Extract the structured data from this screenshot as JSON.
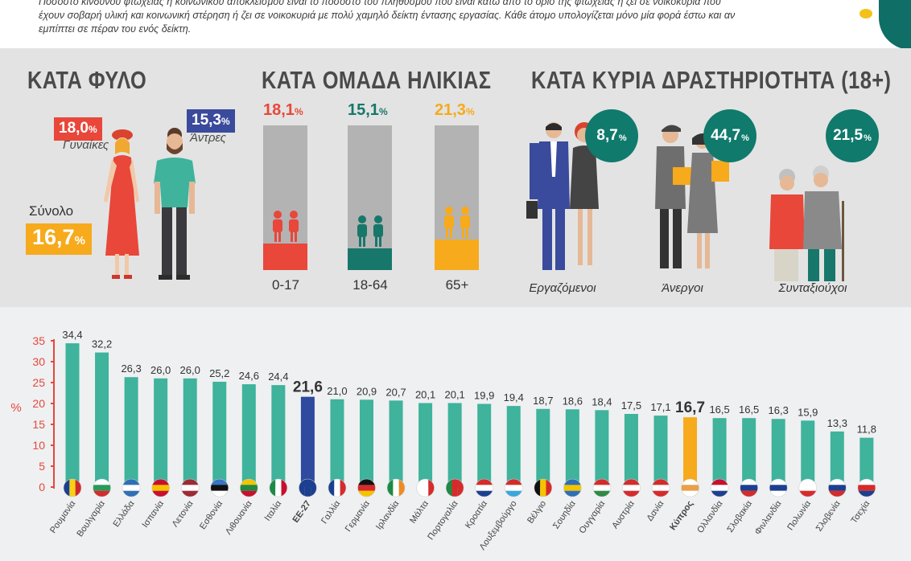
{
  "intro_text": "Ποσοστό κινδύνου φτώχειας ή κοινωνικού αποκλεισμού είναι το ποσοστό του πληθυσμού που είναι κάτω από το όριο της φτώχειας ή ζει σε νοικοκυριά που έχουν σοβαρή υλική και κοινωνική στέρηση ή ζει σε νοικοκυριά με πολύ χαμηλό δείκτη έντασης εργασίας. Κάθε άτομο υπολογίζεται μόνο μία φορά έστω και αν εμπίπτει σε πέραν του ενός δείκτη.",
  "gender": {
    "title": "ΚΑΤΑ ΦΥΛΟ",
    "women_value": "18,0",
    "women_label": "Γυναίκες",
    "men_value": "15,3",
    "men_label": "Άντρες",
    "total_label": "Σύνολο",
    "total_value": "16,7",
    "pct": "%"
  },
  "age": {
    "title": "ΚΑΤΑ ΟΜΑΔΑ ΗΛΙΚΙΑΣ",
    "groups": [
      {
        "value": "18,1",
        "label": "0-17",
        "fraction": 0.181,
        "color": "#e8473a"
      },
      {
        "value": "15,1",
        "label": "18-64",
        "fraction": 0.151,
        "color": "#17776b"
      },
      {
        "value": "21,3",
        "label": "65+",
        "fraction": 0.213,
        "color": "#f6aa1c"
      }
    ],
    "pct": "%"
  },
  "activity": {
    "title": "ΚΑΤΑ ΚΥΡΙΑ ΔΡΑΣΤΗΡΙΟΤΗΤΑ (18+)",
    "groups": [
      {
        "value": "8,7",
        "label": "Εργαζόμενοι"
      },
      {
        "value": "44,7",
        "label": "Άνεργοι"
      },
      {
        "value": "21,5",
        "label": "Συνταξιούχοι"
      }
    ],
    "pct": "%"
  },
  "colors": {
    "red": "#e8473a",
    "blue": "#3a4a9c",
    "orange": "#f6aa1c",
    "teal_bar": "#3fb39c",
    "teal_dark": "#107a6c",
    "eu_bar": "#2f4a9e",
    "cy_bar": "#f6aa1c",
    "axis_red": "#e8473a"
  },
  "chart_data": {
    "type": "bar",
    "ylabel": "%",
    "ylim": [
      0,
      35
    ],
    "yticks": [
      0,
      5,
      10,
      15,
      20,
      25,
      30,
      35
    ],
    "grid": false,
    "categories": [
      "Ρουμανία",
      "Βουλγαρία",
      "Ελλάδα",
      "Ισπανία",
      "Λετονία",
      "Εσθονία",
      "Λιθουανία",
      "Ιταλία",
      "ΕΕ-27",
      "Γαλλία",
      "Γερμανία",
      "Ιρλανδία",
      "Μάλτα",
      "Πορτογαλία",
      "Κροατία",
      "Λουξεμβούργο",
      "Βέλγιο",
      "Σουηδία",
      "Ουγγαρία",
      "Αυστρία",
      "Δανία",
      "Κύπρος",
      "Ολλανδία",
      "Σλοβακία",
      "Φινλανδία",
      "Πολωνία",
      "Σλοβενία",
      "Τσεχία"
    ],
    "values": [
      34.4,
      32.2,
      26.3,
      26.0,
      26.0,
      25.2,
      24.6,
      24.4,
      21.6,
      21.0,
      20.9,
      20.7,
      20.1,
      20.1,
      19.9,
      19.4,
      18.7,
      18.6,
      18.4,
      17.5,
      17.1,
      16.7,
      16.5,
      16.5,
      16.3,
      15.9,
      13.3,
      11.8
    ],
    "value_labels": [
      "34,4",
      "32,2",
      "26,3",
      "26,0",
      "26,0",
      "25,2",
      "24,6",
      "24,4",
      "21,6",
      "21,0",
      "20,9",
      "20,7",
      "20,1",
      "20,1",
      "19,9",
      "19,4",
      "18,7",
      "18,6",
      "18,4",
      "17,5",
      "17,1",
      "16,7",
      "16,5",
      "16,5",
      "16,3",
      "15,9",
      "13,3",
      "11,8"
    ],
    "highlight": {
      "ΕΕ-27": "eu",
      "Κύπρος": "cy"
    },
    "flags": [
      "ro",
      "bg",
      "gr",
      "es",
      "lv",
      "ee",
      "lt",
      "it",
      "eu",
      "fr",
      "de",
      "ie",
      "mt",
      "pt",
      "hr",
      "lu",
      "be",
      "se",
      "hu",
      "at",
      "dk",
      "cy",
      "nl",
      "sk",
      "fi",
      "pl",
      "si",
      "cz"
    ]
  }
}
